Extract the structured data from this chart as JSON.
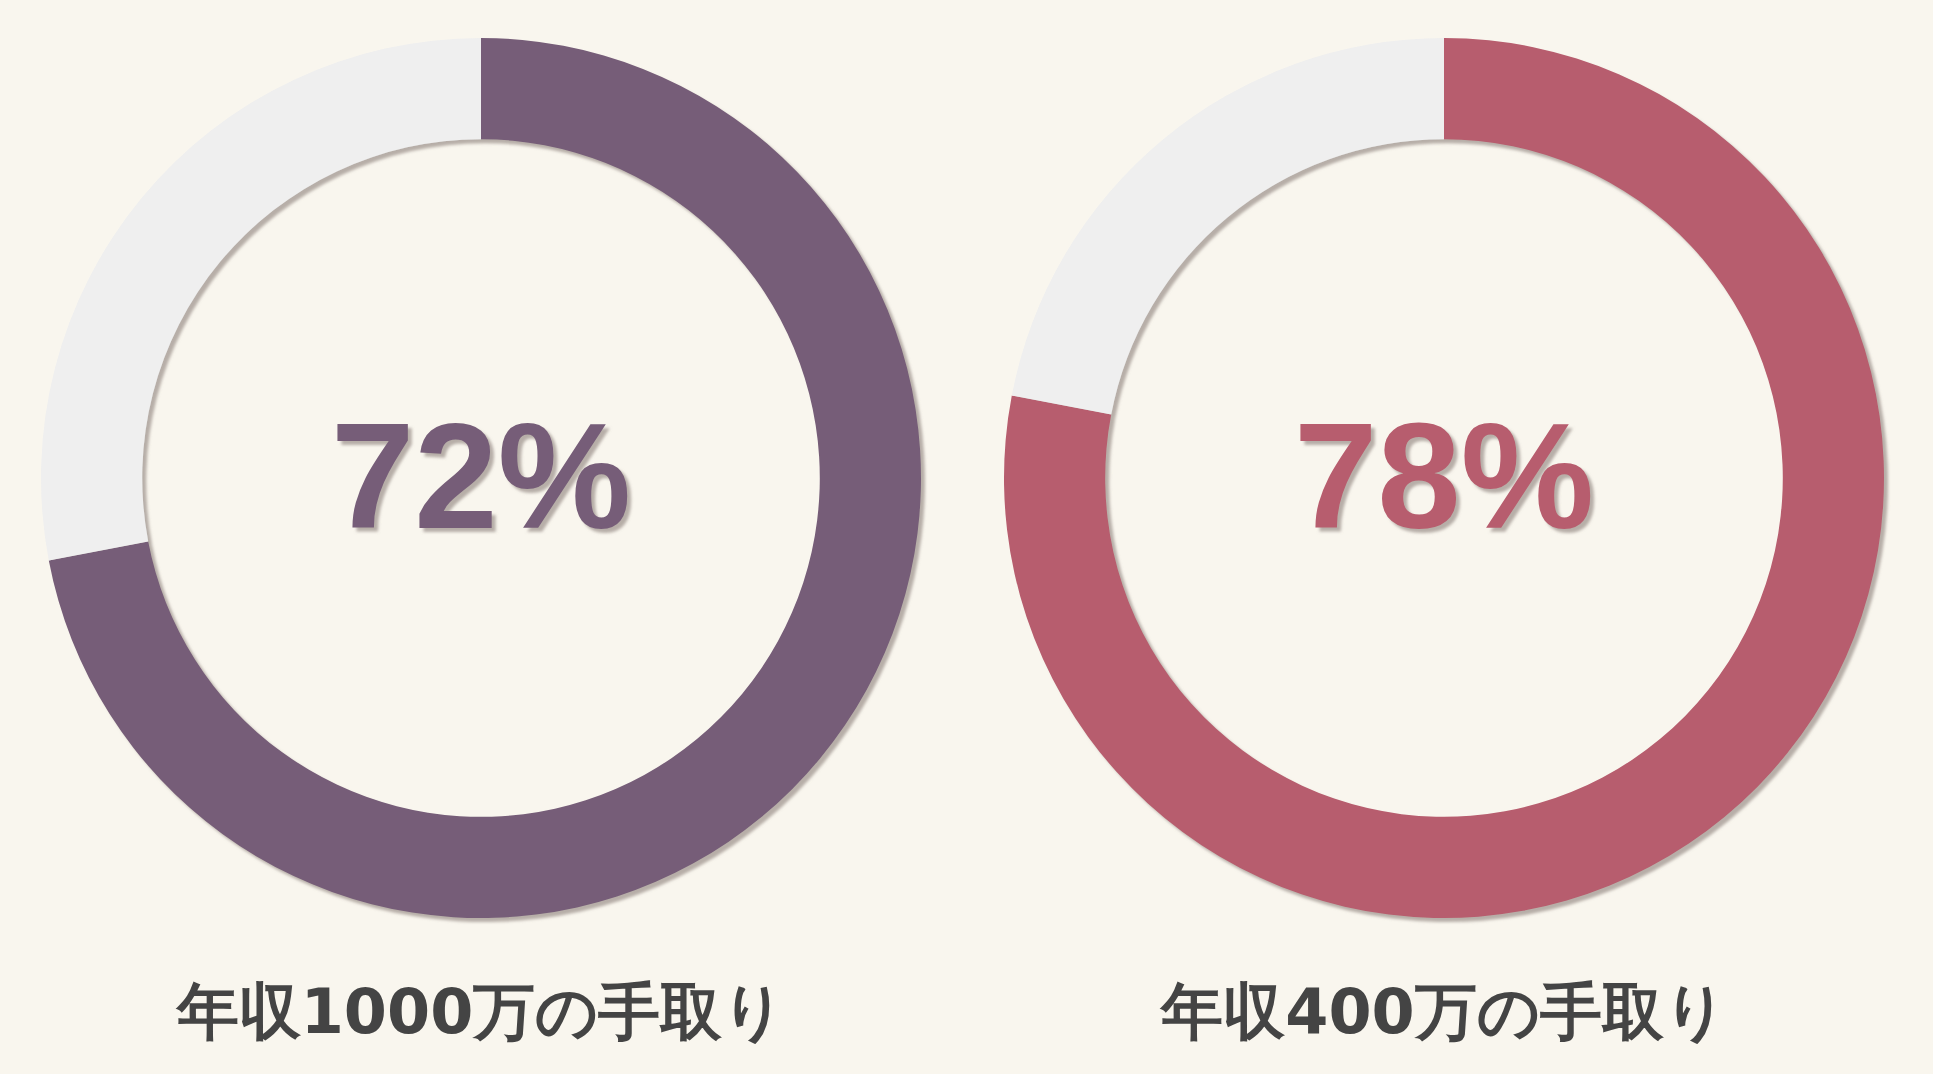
{
  "chart_data": [
    {
      "type": "donut",
      "title": "年収1000万の手取り",
      "categories": [
        null,
        null
      ],
      "values": [
        72,
        28
      ],
      "colors": [
        "#765d78",
        "#efefef"
      ],
      "value_labels": [
        "72%",
        null
      ]
    },
    {
      "type": "donut",
      "title": "年収400万の手取り",
      "categories": [
        null,
        null
      ],
      "values": [
        78,
        22
      ],
      "colors": [
        "#b75d6e",
        "#efefef"
      ],
      "value_labels": [
        "78%",
        null
      ]
    }
  ]
}
